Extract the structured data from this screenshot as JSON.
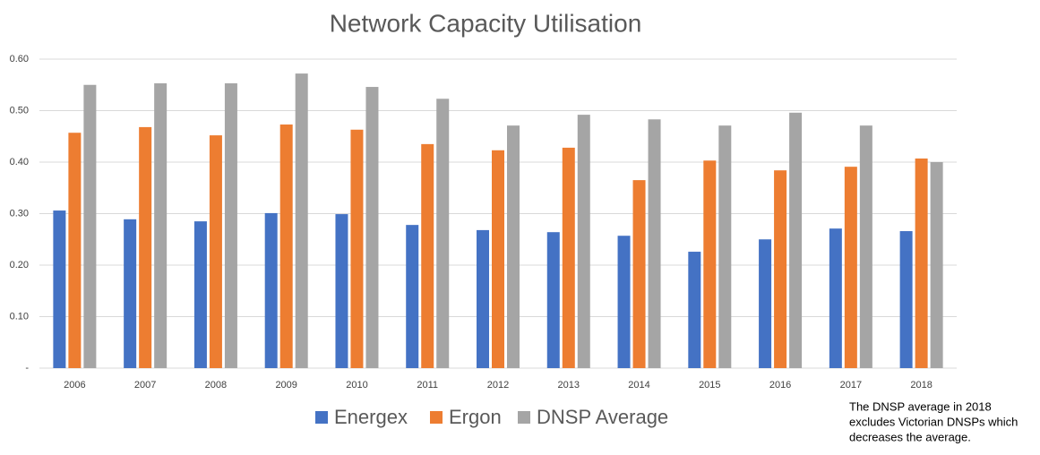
{
  "chart_data": {
    "type": "bar",
    "title": "Network Capacity Utilisation",
    "categories": [
      "2006",
      "2007",
      "2008",
      "2009",
      "2010",
      "2011",
      "2012",
      "2013",
      "2014",
      "2015",
      "2016",
      "2017",
      "2018"
    ],
    "series": [
      {
        "name": "Energex",
        "color": "#4472c4",
        "values": [
          0.306,
          0.289,
          0.285,
          0.301,
          0.299,
          0.278,
          0.268,
          0.264,
          0.257,
          0.226,
          0.25,
          0.271,
          0.266
        ]
      },
      {
        "name": "Ergon",
        "color": "#ed7d31",
        "values": [
          0.457,
          0.468,
          0.452,
          0.473,
          0.463,
          0.435,
          0.423,
          0.428,
          0.365,
          0.403,
          0.384,
          0.391,
          0.407
        ]
      },
      {
        "name": "DNSP Average",
        "color": "#a5a5a5",
        "values": [
          0.55,
          0.553,
          0.553,
          0.572,
          0.546,
          0.523,
          0.471,
          0.492,
          0.483,
          0.471,
          0.496,
          0.471,
          0.4
        ]
      }
    ],
    "ylim": [
      0,
      0.6
    ],
    "yticks": [
      {
        "value": 0,
        "label": "-"
      },
      {
        "value": 0.1,
        "label": "0.10"
      },
      {
        "value": 0.2,
        "label": "0.20"
      },
      {
        "value": 0.3,
        "label": "0.30"
      },
      {
        "value": 0.4,
        "label": "0.40"
      },
      {
        "value": 0.5,
        "label": "0.50"
      },
      {
        "value": 0.6,
        "label": "0.60"
      }
    ],
    "grid": true,
    "legend": "bottom",
    "annotation": [
      "The DNSP average in 2018",
      "excludes Victorian DNSPs which",
      "decreases the average."
    ]
  }
}
